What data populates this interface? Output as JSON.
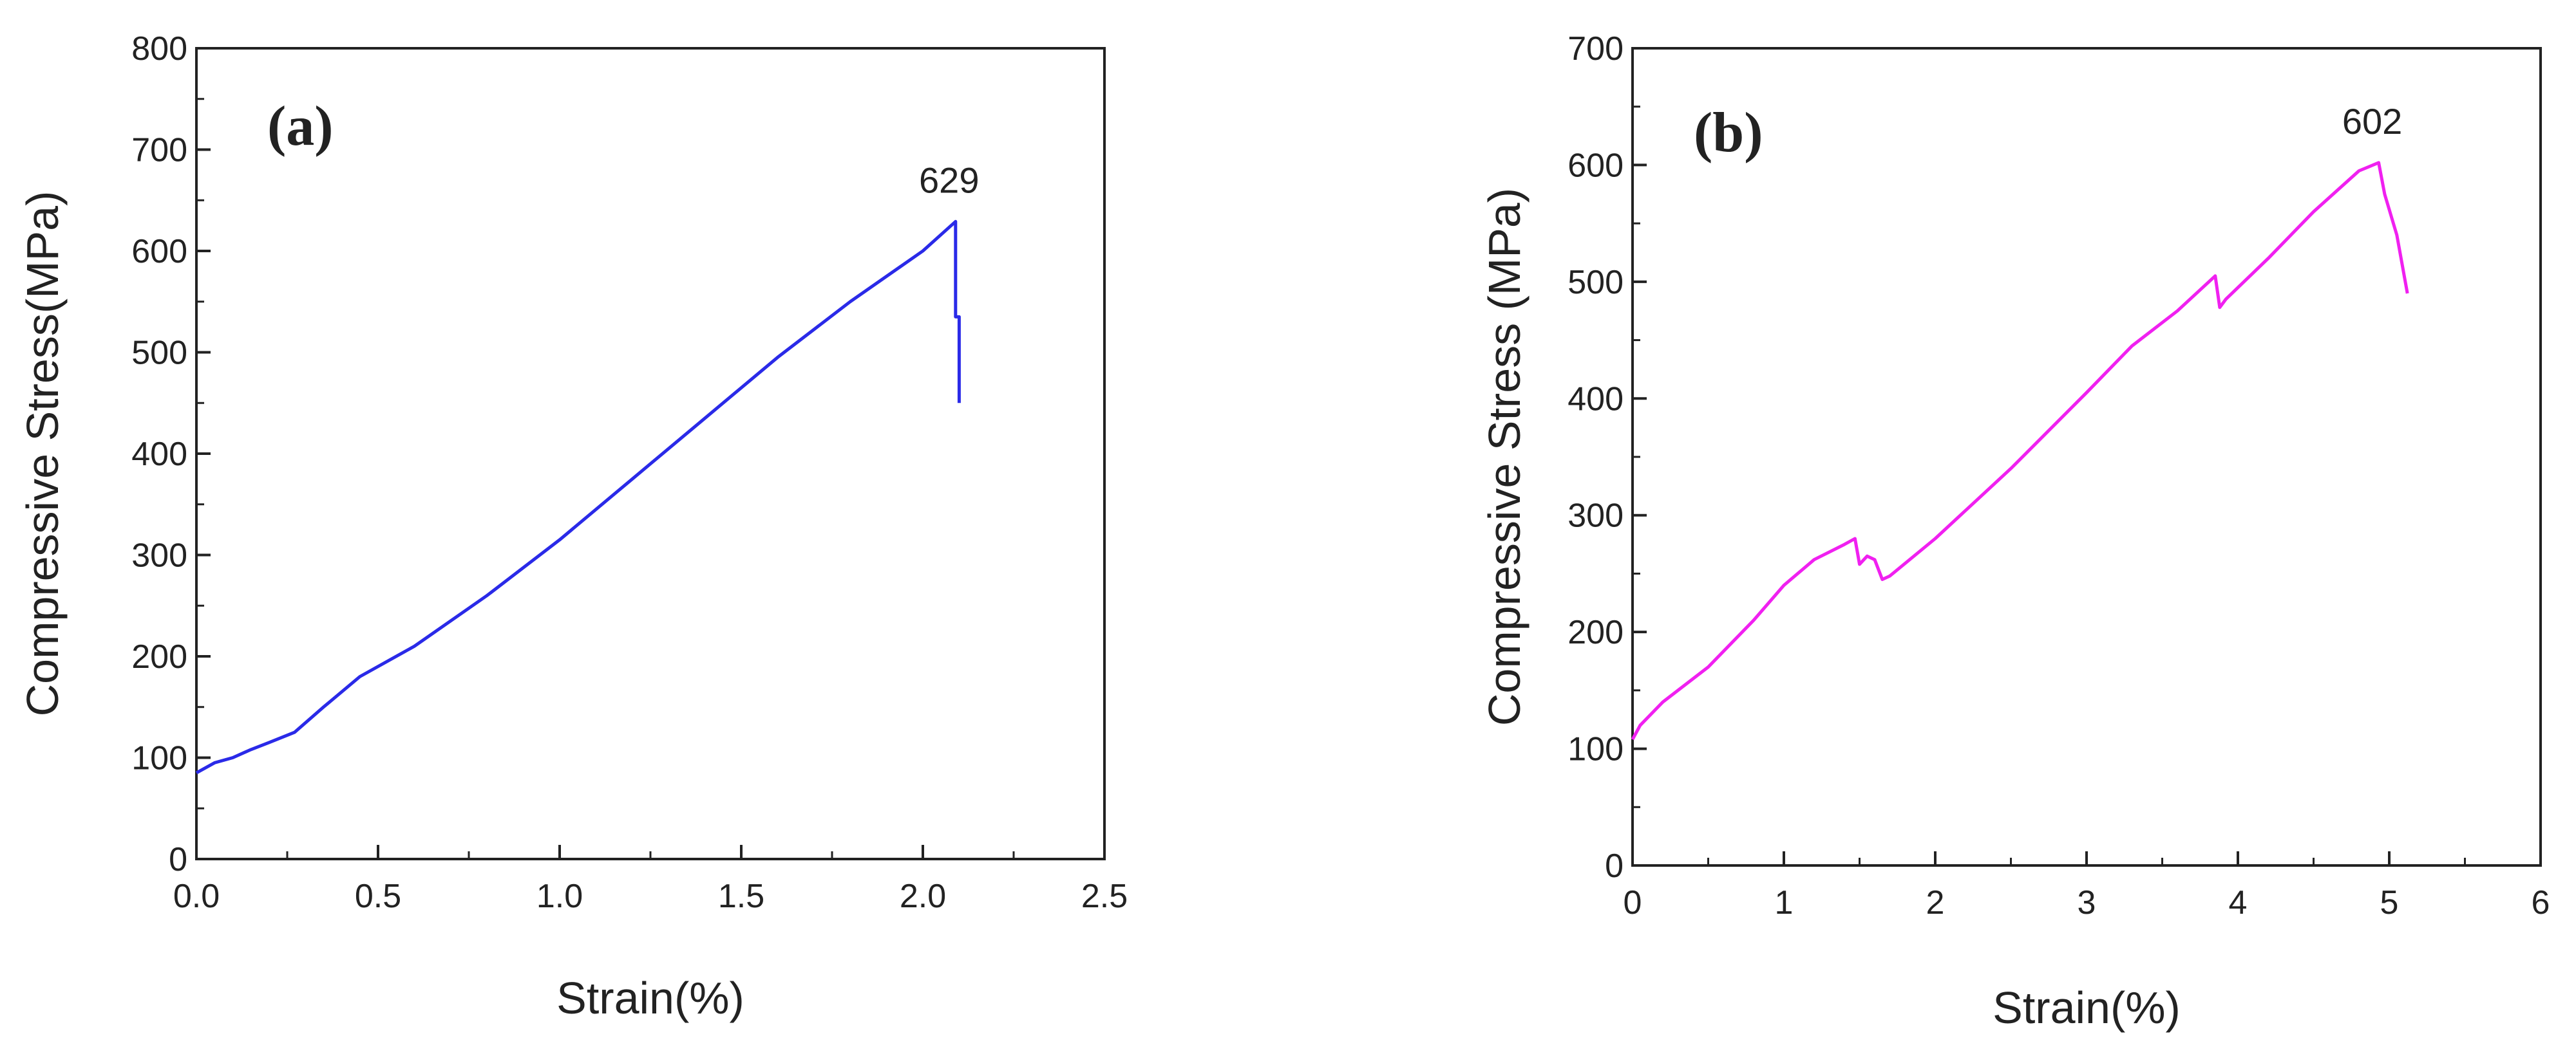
{
  "chart_data": [
    {
      "type": "line",
      "panel_label": "(a)",
      "xlabel": "Strain(%)",
      "ylabel": "Compressive Stress(MPa)",
      "xlim": [
        0,
        2.5
      ],
      "ylim": [
        0,
        800
      ],
      "x_ticks": [
        "0.0",
        "0.5",
        "1.0",
        "1.5",
        "2.0",
        "2.5"
      ],
      "y_ticks": [
        "0",
        "100",
        "200",
        "300",
        "400",
        "500",
        "600",
        "700",
        "800"
      ],
      "grid": false,
      "color": "#2a2ae8",
      "annotation": {
        "text": "629",
        "x": 2.09,
        "y": 629
      },
      "series": [
        {
          "x": [
            0.0,
            0.05,
            0.1,
            0.15,
            0.2,
            0.27,
            0.35,
            0.45,
            0.6,
            0.8,
            1.0,
            1.2,
            1.4,
            1.6,
            1.8,
            2.0,
            2.09,
            2.09,
            2.1,
            2.1
          ],
          "y": [
            85,
            95,
            100,
            108,
            115,
            125,
            150,
            180,
            210,
            260,
            315,
            375,
            435,
            495,
            550,
            600,
            629,
            535,
            535,
            450
          ]
        }
      ]
    },
    {
      "type": "line",
      "panel_label": "(b)",
      "xlabel": "Strain(%)",
      "ylabel": "Compressive Stress (MPa)",
      "xlim": [
        0,
        6
      ],
      "ylim": [
        0,
        700
      ],
      "x_ticks": [
        "0",
        "1",
        "2",
        "3",
        "4",
        "5",
        "6"
      ],
      "y_ticks": [
        "0",
        "100",
        "200",
        "300",
        "400",
        "500",
        "600",
        "700"
      ],
      "grid": false,
      "color": "#f020f0",
      "annotation": {
        "text": "602",
        "x": 4.93,
        "y": 602
      },
      "series": [
        {
          "x": [
            0.0,
            0.05,
            0.2,
            0.5,
            0.8,
            1.0,
            1.2,
            1.4,
            1.47,
            1.5,
            1.55,
            1.6,
            1.65,
            1.7,
            2.0,
            2.5,
            3.0,
            3.3,
            3.6,
            3.85,
            3.88,
            3.92,
            4.2,
            4.5,
            4.8,
            4.93,
            4.97,
            5.05,
            5.12
          ],
          "y": [
            108,
            120,
            140,
            170,
            210,
            240,
            262,
            275,
            280,
            258,
            265,
            262,
            245,
            248,
            280,
            340,
            405,
            445,
            475,
            505,
            478,
            485,
            520,
            560,
            595,
            602,
            575,
            540,
            490
          ]
        }
      ]
    }
  ]
}
